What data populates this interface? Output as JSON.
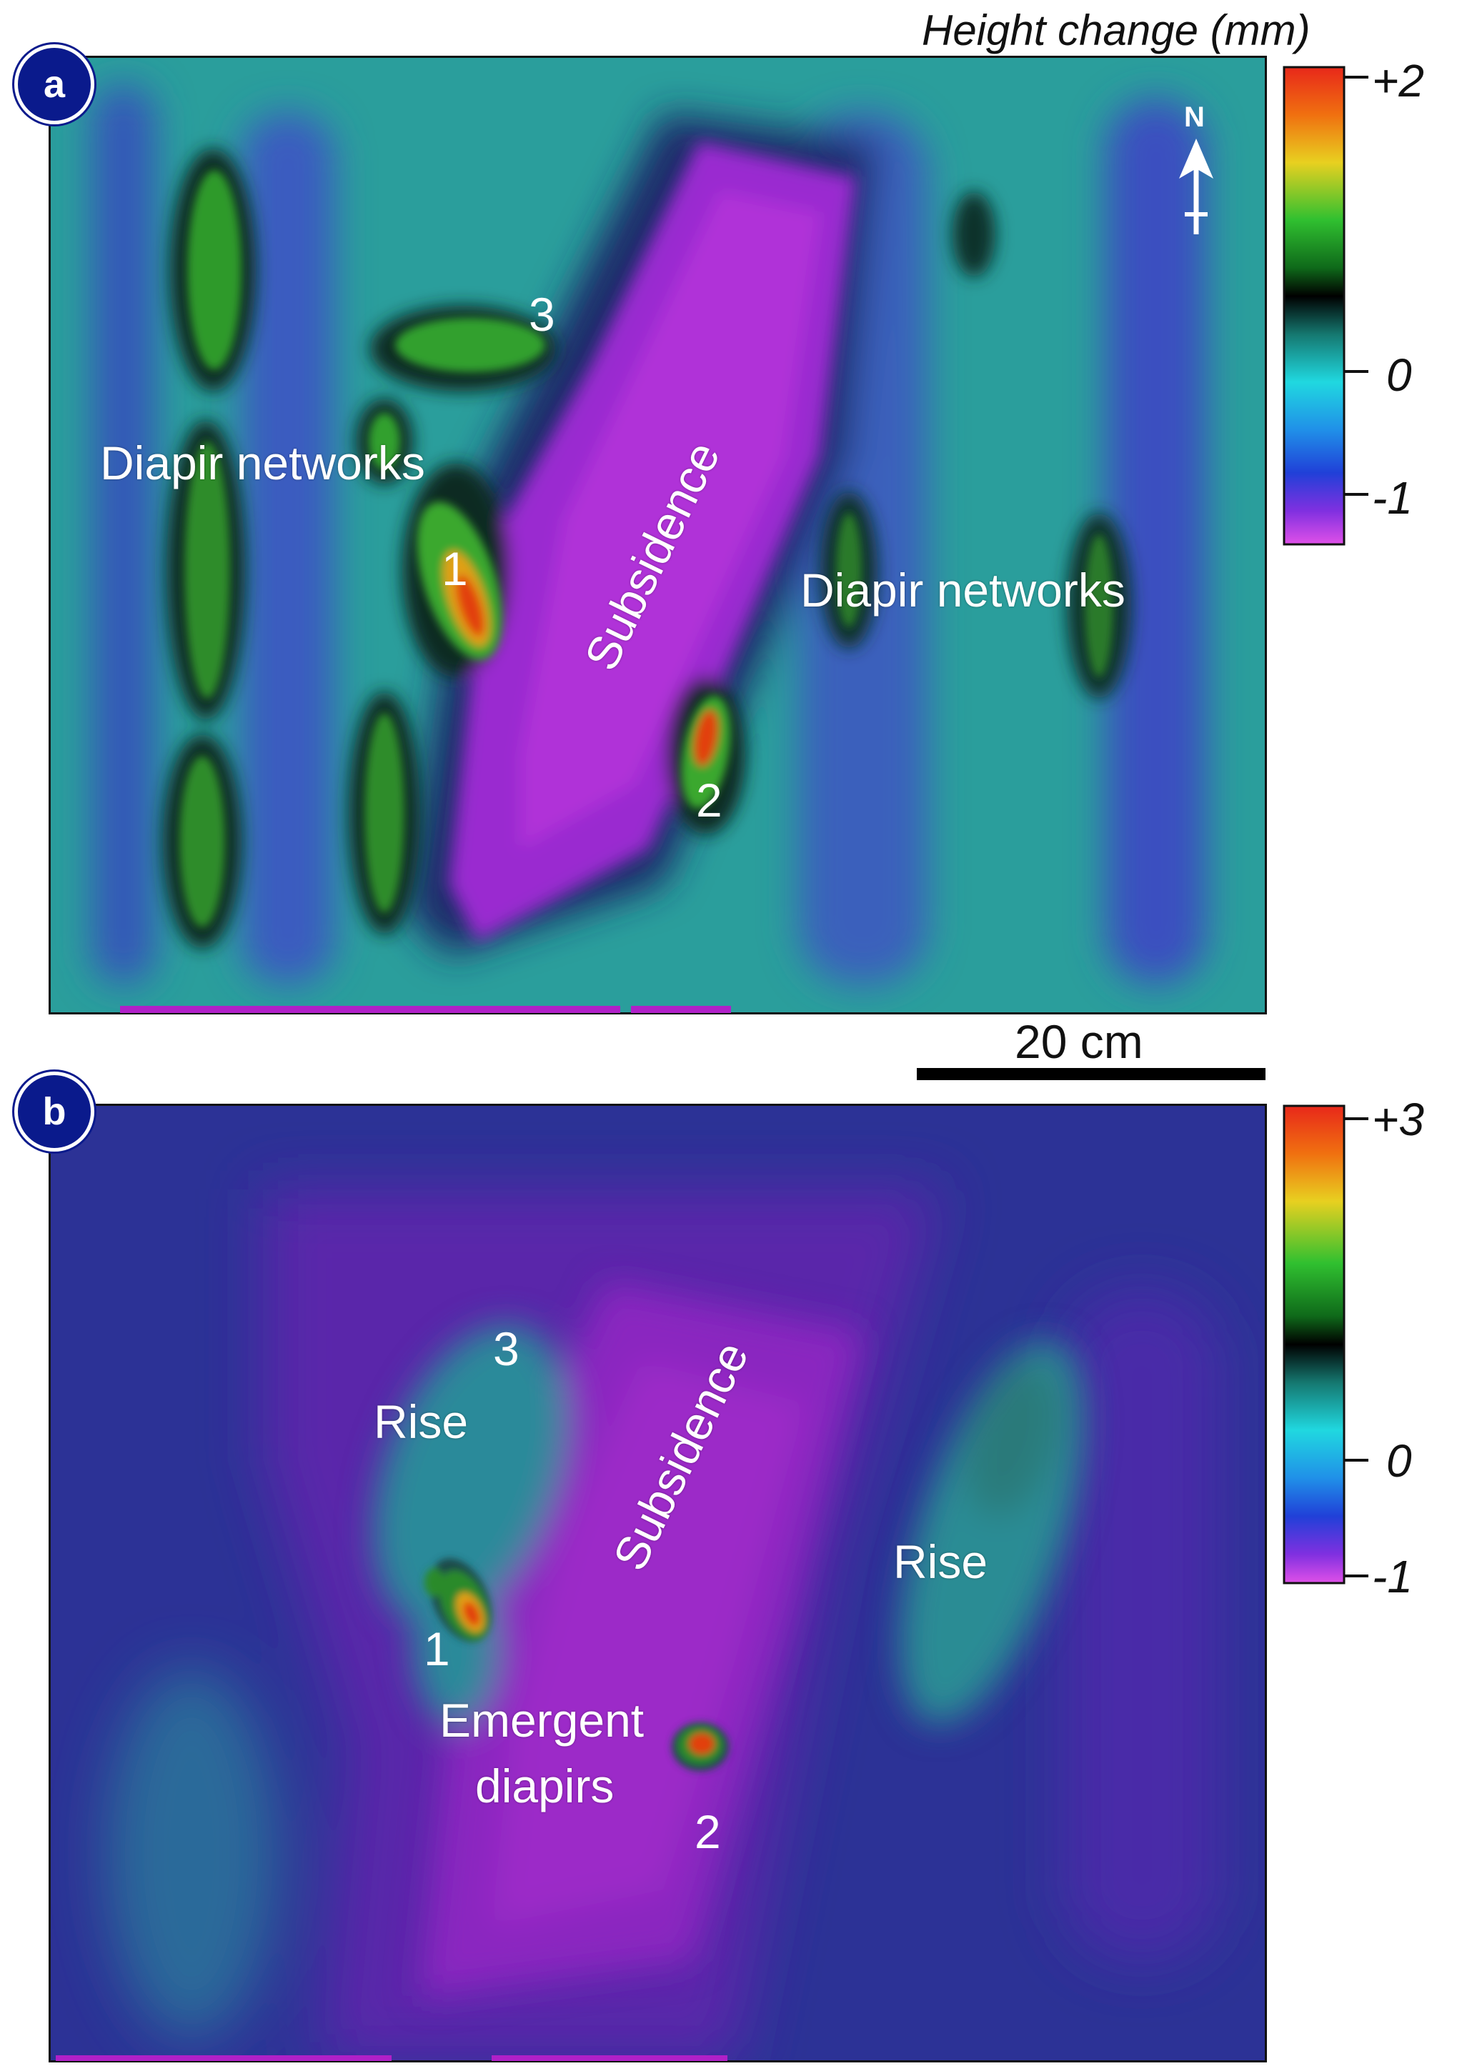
{
  "colorbar_title": "Height change (mm)",
  "panel_a": {
    "badge": "a",
    "labels": {
      "diapir_left": "Diapir networks",
      "diapir_right": "Diapir networks",
      "subsidence": "Subsidence",
      "n1": "1",
      "n2": "2",
      "n3": "3"
    },
    "north": "N",
    "colorbar": {
      "max": "+2",
      "mid": "0",
      "min": "-1"
    }
  },
  "scale_bar": {
    "label": "20 cm"
  },
  "panel_b": {
    "badge": "b",
    "labels": {
      "rise_left": "Rise",
      "rise_right": "Rise",
      "subsidence": "Subsidence",
      "emergent_1": "Emergent",
      "emergent_2": "diapirs",
      "n1": "1",
      "n2": "2",
      "n3": "3"
    },
    "colorbar": {
      "max": "+3",
      "mid": "0",
      "min": "-1"
    }
  },
  "colors": {
    "teal_bg": "#2a9c9c",
    "blue_bg": "#2c2c9e",
    "subsidence": "#9a28c8",
    "green": "#2a8a2a",
    "red": "#e24010",
    "badge": "#0a1a8c"
  }
}
